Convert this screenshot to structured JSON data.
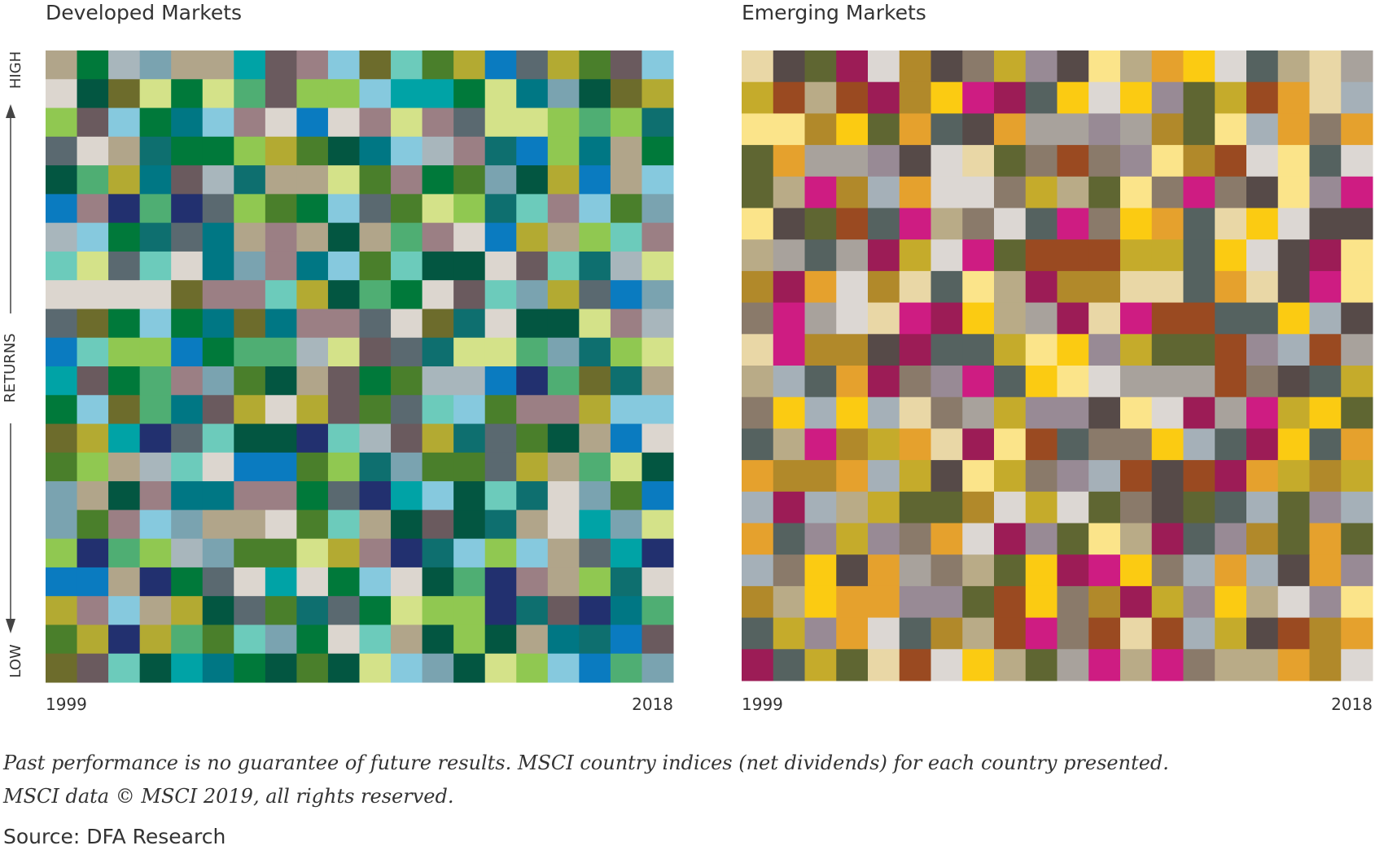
{
  "panels": [
    {
      "title": "Developed Markets",
      "start": "1999",
      "end": "2018",
      "palette": [
        "#0e6f6f",
        "#22306f",
        "#dcd6cf",
        "#00a3a6",
        "#b3aa32",
        "#5a6970",
        "#00793a",
        "#6ccbbb",
        "#d4e289",
        "#90c851",
        "#035641",
        "#007784",
        "#0a7bc0",
        "#a8b6bc",
        "#b1a58a",
        "#9b7f84",
        "#6d6c2c",
        "#4a7f2b",
        "#86c9de",
        "#6a5a5e",
        "#4fae73",
        "#7aa3b0"
      ]
    },
    {
      "title": "Emerging Markets",
      "start": "1999",
      "end": "2018",
      "palette": [
        "#e5a12d",
        "#988a95",
        "#564a48",
        "#b9ab87",
        "#c5ab2b",
        "#dcd7d3",
        "#a8a29c",
        "#9a4a21",
        "#b1892a",
        "#a5b0b8",
        "#5f6632",
        "#ce1c82",
        "#9c1c56",
        "#fbcb12",
        "#fbe48a",
        "#8a7a6a",
        "#556260",
        "#e9d7a6"
      ]
    }
  ],
  "axis": {
    "high": "HIGH",
    "middle": "RETURNS",
    "low": "LOW"
  },
  "footnote": [
    "Past performance is no guarantee of future results. MSCI country indices (net dividends) for each country presented.",
    "MSCI data © MSCI 2019, all rights reserved."
  ],
  "source": "Source: DFA Research"
}
